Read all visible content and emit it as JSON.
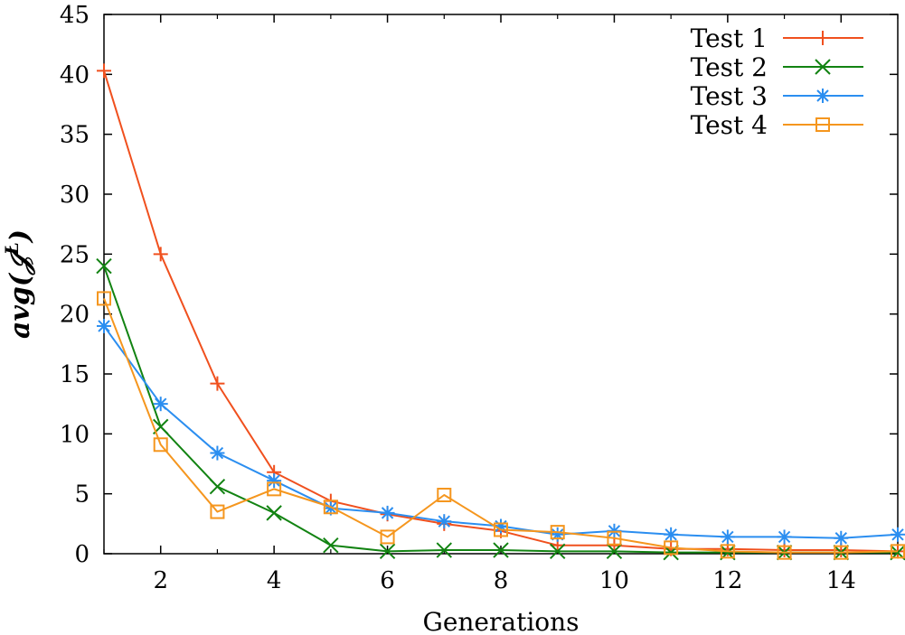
{
  "chart_data": {
    "type": "line",
    "title": "",
    "xlabel": "Generations",
    "ylabel": "avg(𝒥",
    "ylabel_sup": "L",
    "ylabel_close": ")",
    "xlim": [
      1,
      15
    ],
    "ylim": [
      0,
      45
    ],
    "xticks": [
      2,
      4,
      6,
      8,
      10,
      12,
      14
    ],
    "yticks": [
      0,
      5,
      10,
      15,
      20,
      25,
      30,
      35,
      40,
      45
    ],
    "legend_position": "top-right",
    "x": [
      1,
      2,
      3,
      4,
      5,
      6,
      7,
      8,
      9,
      10,
      11,
      12,
      13,
      14,
      15
    ],
    "series": [
      {
        "name": "Test 1",
        "color": "#f0501e",
        "marker": "plus",
        "values": [
          40.3,
          25.0,
          14.2,
          6.8,
          4.4,
          3.3,
          2.5,
          1.9,
          0.7,
          0.7,
          0.4,
          0.4,
          0.3,
          0.3,
          0.2
        ]
      },
      {
        "name": "Test 2",
        "color": "#128312",
        "marker": "cross",
        "values": [
          24.0,
          10.6,
          5.6,
          3.4,
          0.7,
          0.2,
          0.3,
          0.3,
          0.2,
          0.2,
          0.1,
          0.1,
          0.1,
          0.1,
          0.1
        ]
      },
      {
        "name": "Test 3",
        "color": "#2b8ef0",
        "marker": "star",
        "values": [
          19.0,
          12.5,
          8.4,
          6.1,
          3.8,
          3.4,
          2.7,
          2.3,
          1.6,
          1.9,
          1.6,
          1.4,
          1.4,
          1.3,
          1.6
        ]
      },
      {
        "name": "Test 4",
        "color": "#f5961e",
        "marker": "square",
        "values": [
          21.3,
          9.1,
          3.5,
          5.4,
          3.9,
          1.4,
          4.9,
          2.0,
          1.8,
          1.3,
          0.5,
          0.2,
          0.1,
          0.1,
          0.2
        ]
      }
    ]
  }
}
